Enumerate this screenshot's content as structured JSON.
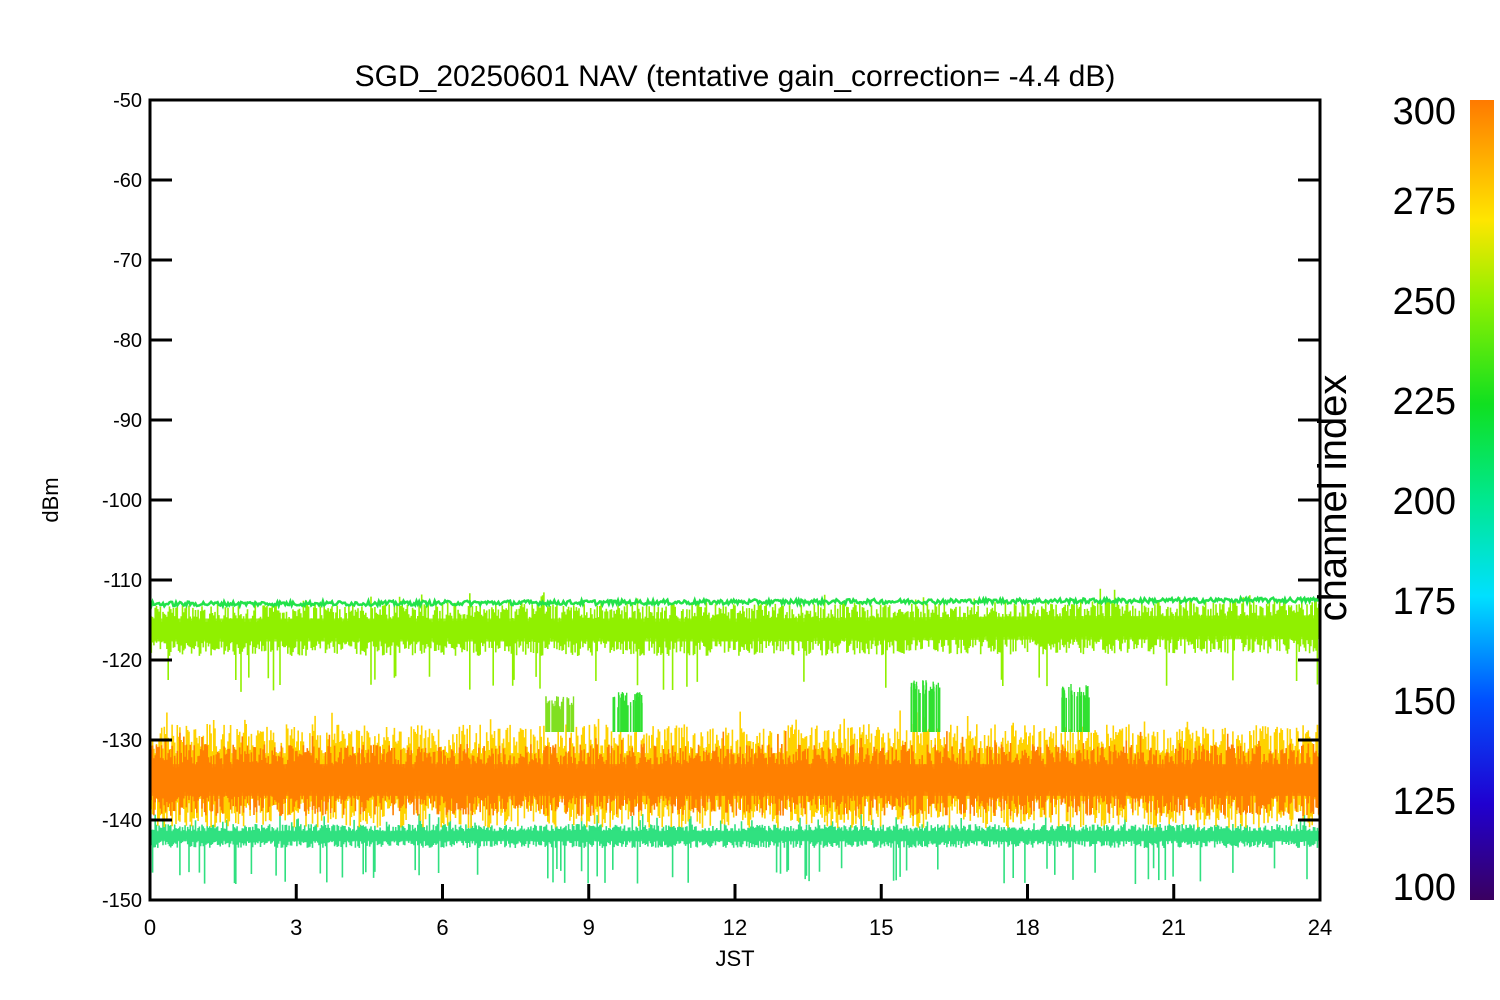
{
  "chart_data": {
    "type": "line",
    "title": "SGD_20250601 NAV (tentative gain_correction= -4.4 dB)",
    "xlabel": "JST",
    "ylabel": "dBm",
    "xlim": [
      0,
      24
    ],
    "ylim": [
      -150,
      -50
    ],
    "x_ticks": [
      0,
      3,
      6,
      9,
      12,
      15,
      18,
      21,
      24
    ],
    "y_ticks": [
      -50,
      -60,
      -70,
      -80,
      -90,
      -100,
      -110,
      -120,
      -130,
      -140,
      -150
    ],
    "grid": false,
    "colorbar": {
      "label": "channel index",
      "range": [
        100,
        300
      ],
      "ticks": [
        300,
        275,
        250,
        225,
        200,
        175,
        150,
        125,
        100
      ],
      "colormap": [
        "#3a0060",
        "#0000ff",
        "#00c8ff",
        "#00e27a",
        "#28e000",
        "#a0f000",
        "#ffef00",
        "#ffa000",
        "#ff7a00"
      ]
    },
    "series": [
      {
        "channel_index": 245,
        "color": "#90f000",
        "band_upper": [
          [
            0,
            -113.0
          ],
          [
            6,
            -113.0
          ],
          [
            12,
            -113.0
          ],
          [
            18,
            -112.7
          ],
          [
            24,
            -112.5
          ]
        ],
        "band_lower": [
          [
            0,
            -119.5
          ],
          [
            6,
            -119.5
          ],
          [
            12,
            -119.5
          ],
          [
            18,
            -119.3
          ],
          [
            24,
            -119.3
          ]
        ],
        "typical_dip": -122
      },
      {
        "channel_index": 230,
        "color": "#22e24a",
        "level": [
          [
            0,
            -113.0
          ],
          [
            24,
            -112.5
          ]
        ]
      },
      {
        "channel_index": 290,
        "color": "#ff8000",
        "band_upper": [
          [
            0,
            -130.5
          ],
          [
            24,
            -130.5
          ]
        ],
        "band_lower": [
          [
            0,
            -139.5
          ],
          [
            24,
            -139.5
          ]
        ]
      },
      {
        "channel_index": 270,
        "color": "#ffd200",
        "band_upper": [
          [
            0,
            -128.0
          ],
          [
            24,
            -128.0
          ]
        ],
        "band_lower": [
          [
            0,
            -141.0
          ],
          [
            24,
            -141.0
          ]
        ]
      },
      {
        "channel_index": 210,
        "color": "#30e080",
        "band_upper": [
          [
            0,
            -140.5
          ],
          [
            24,
            -140.5
          ]
        ],
        "band_lower": [
          [
            0,
            -143.5
          ],
          [
            24,
            -143.5
          ]
        ],
        "typical_dip": -146
      }
    ],
    "bursts": [
      {
        "x": 9.8,
        "y_top": -126,
        "color": "#30e030"
      },
      {
        "x": 15.9,
        "y_top": -124.5,
        "color": "#30e030"
      },
      {
        "x": 19.0,
        "y_top": -125,
        "color": "#30e030"
      },
      {
        "x": 8.4,
        "y_top": -126.5,
        "color": "#80e020"
      }
    ]
  }
}
